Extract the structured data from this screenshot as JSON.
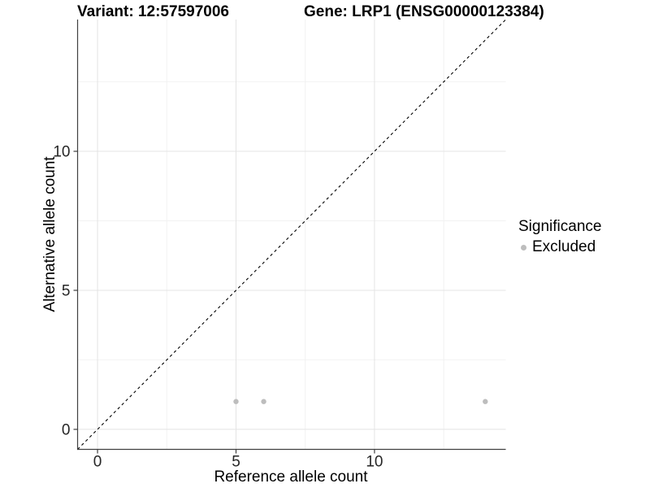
{
  "titles": {
    "variant": "Variant: 12:57597006",
    "gene": "Gene: LRP1 (ENSG00000123384)"
  },
  "axes": {
    "x": {
      "label": "Reference allele count",
      "tick_labels": [
        "0",
        "5",
        "10"
      ]
    },
    "y": {
      "label": "Alternative allele count",
      "tick_labels": [
        "0",
        "5",
        "10"
      ]
    }
  },
  "legend": {
    "title": "Significance",
    "items": [
      {
        "label": "Excluded",
        "color": "#bdbdbd"
      }
    ]
  },
  "colors": {
    "background": "#ffffff",
    "point": "#bdbdbd",
    "axis_line": "#404040",
    "grid_major": "#e4e4e4",
    "grid_minor": "#f2f2f2",
    "identity_line": "#000000",
    "tick_text": "#262626"
  },
  "chart_data": {
    "type": "scatter",
    "title": "Variant: 12:57597006 / Gene: LRP1 (ENSG00000123384)",
    "xlabel": "Reference allele count",
    "ylabel": "Alternative allele count",
    "xlim": [
      -0.72,
      14.74
    ],
    "ylim": [
      -0.72,
      14.74
    ],
    "x_major_ticks": [
      0,
      5,
      10
    ],
    "x_minor_ticks": [
      2.5,
      7.5,
      12.5
    ],
    "y_major_ticks": [
      0,
      5,
      10
    ],
    "y_minor_ticks": [
      2.5,
      7.5,
      12.5
    ],
    "grid": true,
    "legend_position": "right",
    "identity_line": {
      "style": "dashed",
      "from": [
        -0.72,
        -0.72
      ],
      "to": [
        14.74,
        14.74
      ]
    },
    "series": [
      {
        "name": "Excluded",
        "color": "#bdbdbd",
        "points": [
          [
            5,
            1
          ],
          [
            6,
            1
          ],
          [
            14,
            1
          ]
        ]
      }
    ]
  }
}
